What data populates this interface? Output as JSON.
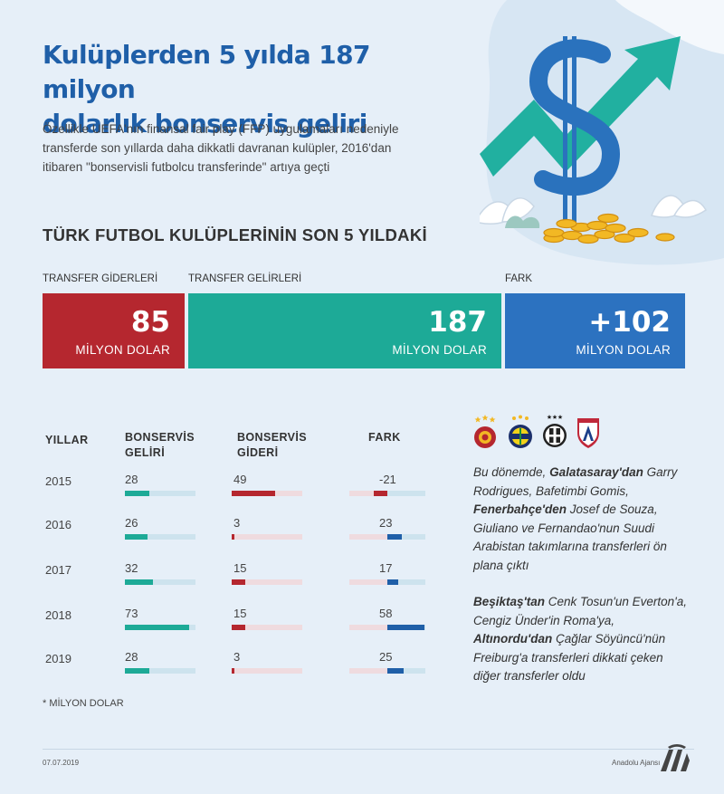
{
  "headline": {
    "line1": "Kulüplerden 5 yılda 187 milyon",
    "line2": "dolarlık bonservis geliri"
  },
  "intro": {
    "line1": "Özellikle UEFA'nın finansal fair play (FFP) uygulamaları nedeniyle",
    "line2": "transferde son yıllarda daha dikkatli davranan kulüpler, 2016'dan",
    "line3": "itibaren \"bonservisli futbolcu transferinde\" artıya geçti"
  },
  "section_title": "TÜRK FUTBOL KULÜPLERİNİN SON 5 YILDAKİ",
  "summary": {
    "expenses": {
      "label": "TRANSFER GİDERLERİ",
      "value": "85",
      "unit": "MİLYON DOLAR",
      "color": "#b5272f"
    },
    "income": {
      "label": "TRANSFER GELİRLERİ",
      "value": "187",
      "unit": "MİLYON DOLAR",
      "color": "#1daa97"
    },
    "diff": {
      "label": "FARK",
      "value": "+102",
      "unit": "MİLYON DOLAR",
      "color": "#2c72c0"
    }
  },
  "table_headers": {
    "years": "YILLAR",
    "income_l1": "BONSERVİS",
    "income_l2": "GELİRİ",
    "expense_l1": "BONSERVİS",
    "expense_l2": "GİDERİ",
    "diff": "FARK"
  },
  "chart_data": {
    "type": "bar",
    "categories": [
      "2015",
      "2016",
      "2017",
      "2018",
      "2019"
    ],
    "series": [
      {
        "name": "BONSERVİS GELİRİ",
        "values": [
          28,
          26,
          32,
          73,
          28
        ],
        "color": "#1daa97"
      },
      {
        "name": "BONSERVİS GİDERİ",
        "values": [
          49,
          3,
          15,
          15,
          3
        ],
        "color": "#b5272f"
      },
      {
        "name": "FARK",
        "values": [
          -21,
          23,
          17,
          58,
          25
        ],
        "color": "#1f5fa8"
      }
    ],
    "value_labels": {
      "income": [
        "28",
        "26",
        "32",
        "73",
        "28"
      ],
      "expense": [
        "49",
        "3",
        "15",
        "15",
        "3"
      ],
      "diff": [
        "-21",
        "23",
        "17",
        "58",
        "25"
      ]
    },
    "scale_max": 80
  },
  "footnote": "* MİLYON DOLAR",
  "club_logos": [
    "galatasaray-logo",
    "fenerbahce-logo",
    "besiktas-logo",
    "altinordu-logo"
  ],
  "notes": {
    "p1": {
      "t1": "Bu dönemde, ",
      "b1": "Galatasaray'dan",
      "t2": " Garry",
      "l2": "Rodrigues, Bafetimbi Gomis,",
      "b3": "Fenerbahçe'den",
      "t3": " Josef de Souza,",
      "l4": "Giuliano ve Fernandao'nun Suudi",
      "l5": "Arabistan takımlarına transferleri ön",
      "l6": "plana çıktı"
    },
    "p2": {
      "b1": "Beşiktaş'tan",
      "t1": " Cenk Tosun'un Everton'a,",
      "l2": "Cengiz Ünder'in Roma'ya,",
      "b3": "Altınordu'dan",
      "t3": " Çağlar Söyüncü'nün",
      "l4": "Freiburg'a transferleri dikkati çeken",
      "l5": "diğer transferler oldu"
    }
  },
  "footer": {
    "date": "07.07.2019",
    "agency": "Anadolu Ajansı"
  },
  "colors": {
    "headline": "#1f5fa8",
    "income": "#1daa97",
    "expense": "#b5272f",
    "diff": "#1f5fa8",
    "background": "#e6eff8"
  }
}
